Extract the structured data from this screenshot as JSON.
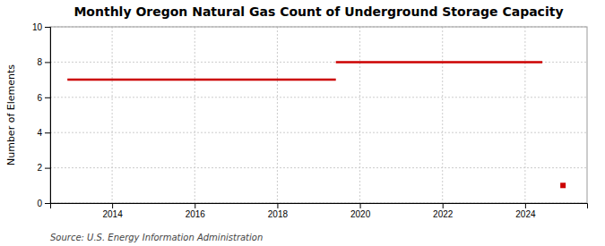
{
  "chart_data": {
    "type": "line",
    "title": "Monthly Oregon Natural Gas Count of Underground Storage Capacity",
    "y_label": "Number of Elements",
    "annotations": [
      "Source: U.S. Energy Information Administration"
    ],
    "color": "#cc0000",
    "series": [
      {
        "type": "line",
        "x": [
          2012.917,
          2019.417
        ],
        "values": [
          7,
          7
        ]
      },
      {
        "type": "line",
        "x": [
          2019.417,
          2024.417
        ],
        "values": [
          8,
          8
        ]
      },
      {
        "type": "scatter",
        "marker": "square",
        "x": [
          2024.917
        ],
        "values": [
          1
        ]
      }
    ],
    "xlim": [
      2012.5,
      2025.5
    ],
    "ylim": [
      0,
      10
    ],
    "xticks": [
      2014,
      2016,
      2018,
      2020,
      2022,
      2024
    ],
    "yticks": [
      0,
      2,
      4,
      6,
      8,
      10
    ],
    "grid": true
  }
}
